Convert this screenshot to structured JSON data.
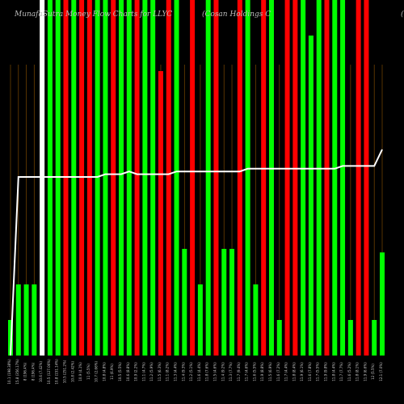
{
  "page": {
    "title_left": "MunafaSutra Money Flow Charts for LLYC",
    "title_mid": "(Cosan Holdings C",
    "title_right": "("
  },
  "chart_data": {
    "type": "bar",
    "title": "MunafaSutra Money Flow Charts for LLYC",
    "ylim": [
      0,
      100
    ],
    "bar_values": [
      10,
      20,
      20,
      20,
      100,
      100,
      100,
      100,
      100,
      100,
      100,
      100,
      100,
      100,
      100,
      100,
      100,
      100,
      100,
      80,
      100,
      100,
      30,
      100,
      20,
      100,
      100,
      30,
      30,
      100,
      100,
      20,
      100,
      100,
      10,
      100,
      100,
      100,
      90,
      100,
      100,
      100,
      100,
      10,
      100,
      100,
      10,
      29
    ],
    "bar_colors": [
      "green",
      "green",
      "green",
      "green",
      "white",
      "green",
      "green",
      "red",
      "green",
      "red",
      "red",
      "green",
      "green",
      "red",
      "green",
      "green",
      "red",
      "green",
      "green",
      "red",
      "red",
      "green",
      "green",
      "red",
      "green",
      "green",
      "red",
      "green",
      "green",
      "red",
      "green",
      "green",
      "red",
      "green",
      "green",
      "red",
      "red",
      "green",
      "green",
      "green",
      "red",
      "green",
      "green",
      "green",
      "red",
      "red",
      "green",
      "green"
    ],
    "line_values": [
      0,
      65,
      65,
      65,
      65,
      65,
      65,
      65,
      65,
      65,
      65,
      65,
      66,
      66,
      66,
      67,
      66,
      66,
      66,
      66,
      66,
      67,
      67,
      67,
      67,
      67,
      67,
      67,
      67,
      67,
      68,
      68,
      68,
      68,
      68,
      68,
      68,
      68,
      68,
      68,
      68,
      68,
      69,
      69,
      69,
      69,
      69,
      75
    ],
    "x_labels": [
      "10.1 (198.38%)",
      "15.8 (356.17%)",
      "8 (196.4%)",
      "8 (196.4%)",
      "10.6 (7.42%)",
      "10.5 (127.06%)",
      "10.8 (151.14%)",
      "10.5 (251.2%)",
      "10.8 (2.42%)",
      "10.9 (4.1%)",
      "11 (5.5%)",
      "10.7 (2.66%)",
      "10.8 (4.8%)",
      "11 (6.9%)",
      "10.5 (5.5%)",
      "10.6 (8.8%)",
      "10.9 (2.2%)",
      "11.1 (4.7%)",
      "11.2 (5.9%)",
      "11.5 (6.3%)",
      "11.1 (8.2%)",
      "11.3 (4.4%)",
      "11.4 (9.3%)",
      "11.2 (5.1%)",
      "11.6 (4.4%)",
      "11.8 (7.6%)",
      "11.5 (4.6%)",
      "11.4 (9.2%)",
      "11.3 (7.7%)",
      "11.7 (9.4%)",
      "11.7 (4.6%)",
      "11.6 (5.5%)",
      "11.9 (8.8%)",
      "11.5 (6.9%)",
      "11.6 (7.2%)",
      "11.7 (4.4%)",
      "11.8 (8.4%)",
      "11.9 (6.1%)",
      "11.6 (7.8%)",
      "11.7 (5.5%)",
      "11.9 (9.8%)",
      "11.8 (4.4%)",
      "11.7 (7.7%)",
      "11.6 (5.2%)",
      "11.8 (8.1%)",
      "11.9 (6.6%)",
      "12 (5.5%)",
      "12.1 (7.0%)"
    ],
    "legend": "none",
    "grid": false
  }
}
